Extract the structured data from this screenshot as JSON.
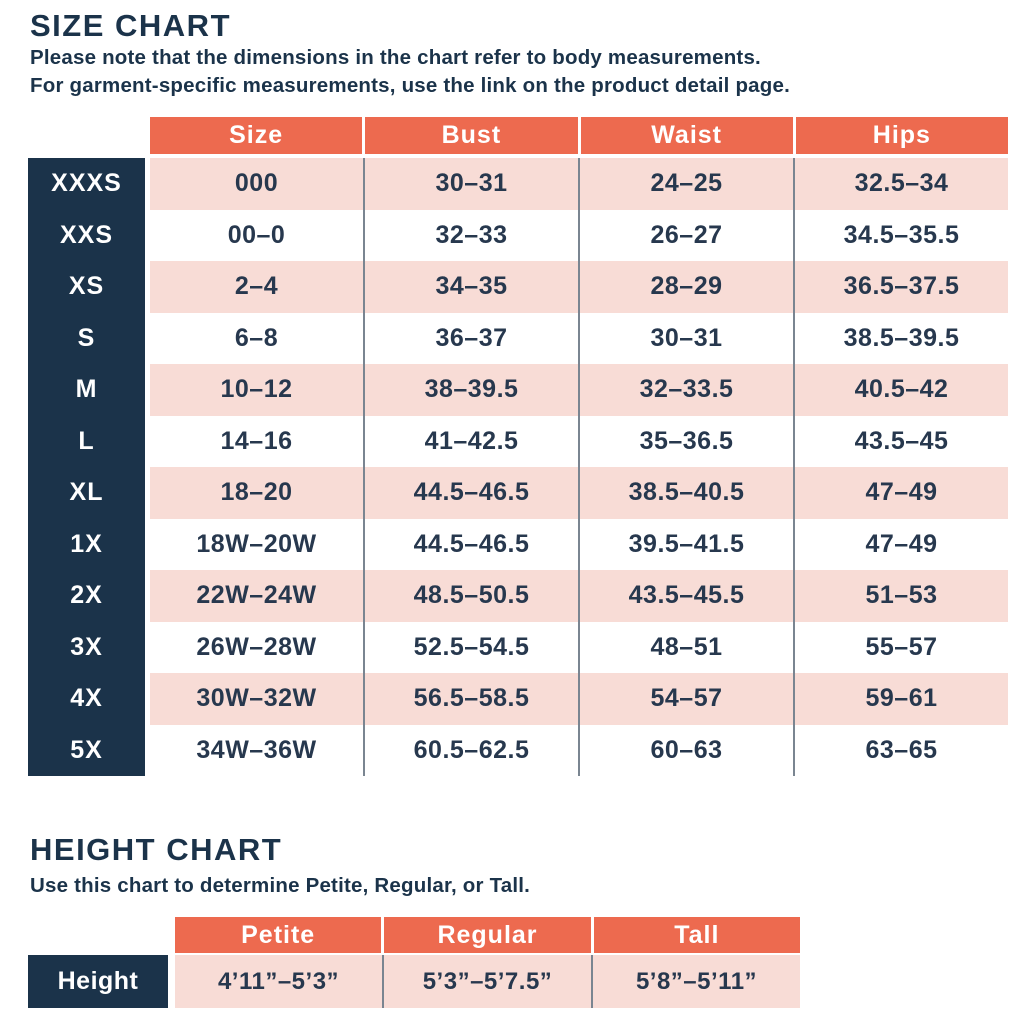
{
  "colors": {
    "coral": "#ED6A4F",
    "navy": "#1B334A",
    "pink": "#F8DCD6",
    "ink": "#27384E",
    "divider": "#7A8591",
    "paper": "#FFFFFF"
  },
  "size_chart": {
    "title": "SIZE CHART",
    "note_line1": "Please note that the dimensions in the chart refer to body measurements.",
    "note_line2": "For garment-specific measurements, use the link on the product detail page.",
    "columns": [
      "Size",
      "Bust",
      "Waist",
      "Hips"
    ],
    "rows": [
      {
        "label": "XXXS",
        "size": "000",
        "bust": "30–31",
        "waist": "24–25",
        "hips": "32.5–34"
      },
      {
        "label": "XXS",
        "size": "00–0",
        "bust": "32–33",
        "waist": "26–27",
        "hips": "34.5–35.5"
      },
      {
        "label": "XS",
        "size": "2–4",
        "bust": "34–35",
        "waist": "28–29",
        "hips": "36.5–37.5"
      },
      {
        "label": "S",
        "size": "6–8",
        "bust": "36–37",
        "waist": "30–31",
        "hips": "38.5–39.5"
      },
      {
        "label": "M",
        "size": "10–12",
        "bust": "38–39.5",
        "waist": "32–33.5",
        "hips": "40.5–42"
      },
      {
        "label": "L",
        "size": "14–16",
        "bust": "41–42.5",
        "waist": "35–36.5",
        "hips": "43.5–45"
      },
      {
        "label": "XL",
        "size": "18–20",
        "bust": "44.5–46.5",
        "waist": "38.5–40.5",
        "hips": "47–49"
      },
      {
        "label": "1X",
        "size": "18W–20W",
        "bust": "44.5–46.5",
        "waist": "39.5–41.5",
        "hips": "47–49"
      },
      {
        "label": "2X",
        "size": "22W–24W",
        "bust": "48.5–50.5",
        "waist": "43.5–45.5",
        "hips": "51–53"
      },
      {
        "label": "3X",
        "size": "26W–28W",
        "bust": "52.5–54.5",
        "waist": "48–51",
        "hips": "55–57"
      },
      {
        "label": "4X",
        "size": "30W–32W",
        "bust": "56.5–58.5",
        "waist": "54–57",
        "hips": "59–61"
      },
      {
        "label": "5X",
        "size": "34W–36W",
        "bust": "60.5–62.5",
        "waist": "60–63",
        "hips": "63–65"
      }
    ]
  },
  "height_chart": {
    "title": "HEIGHT CHART",
    "note": "Use this chart to determine Petite, Regular, or Tall.",
    "columns": [
      "Petite",
      "Regular",
      "Tall"
    ],
    "row_label": "Height",
    "values": [
      "4’11”–5’3”",
      "5’3”–5’7.5”",
      "5’8”–5’11”"
    ]
  },
  "chart_data": [
    {
      "type": "table",
      "title": "SIZE CHART",
      "columns": [
        "Size",
        "Bust",
        "Waist",
        "Hips"
      ],
      "row_labels": [
        "XXXS",
        "XXS",
        "XS",
        "S",
        "M",
        "L",
        "XL",
        "1X",
        "2X",
        "3X",
        "4X",
        "5X"
      ],
      "rows": [
        [
          "000",
          "30–31",
          "24–25",
          "32.5–34"
        ],
        [
          "00–0",
          "32–33",
          "26–27",
          "34.5–35.5"
        ],
        [
          "2–4",
          "34–35",
          "28–29",
          "36.5–37.5"
        ],
        [
          "6–8",
          "36–37",
          "30–31",
          "38.5–39.5"
        ],
        [
          "10–12",
          "38–39.5",
          "32–33.5",
          "40.5–42"
        ],
        [
          "14–16",
          "41–42.5",
          "35–36.5",
          "43.5–45"
        ],
        [
          "18–20",
          "44.5–46.5",
          "38.5–40.5",
          "47–49"
        ],
        [
          "18W–20W",
          "44.5–46.5",
          "39.5–41.5",
          "47–49"
        ],
        [
          "22W–24W",
          "48.5–50.5",
          "43.5–45.5",
          "51–53"
        ],
        [
          "26W–28W",
          "52.5–54.5",
          "48–51",
          "55–57"
        ],
        [
          "30W–32W",
          "56.5–58.5",
          "54–57",
          "59–61"
        ],
        [
          "34W–36W",
          "60.5–62.5",
          "60–63",
          "63–65"
        ]
      ]
    },
    {
      "type": "table",
      "title": "HEIGHT CHART",
      "columns": [
        "Petite",
        "Regular",
        "Tall"
      ],
      "row_labels": [
        "Height"
      ],
      "rows": [
        [
          "4’11”–5’3”",
          "5’3”–5’7.5”",
          "5’8”–5’11”"
        ]
      ]
    }
  ]
}
